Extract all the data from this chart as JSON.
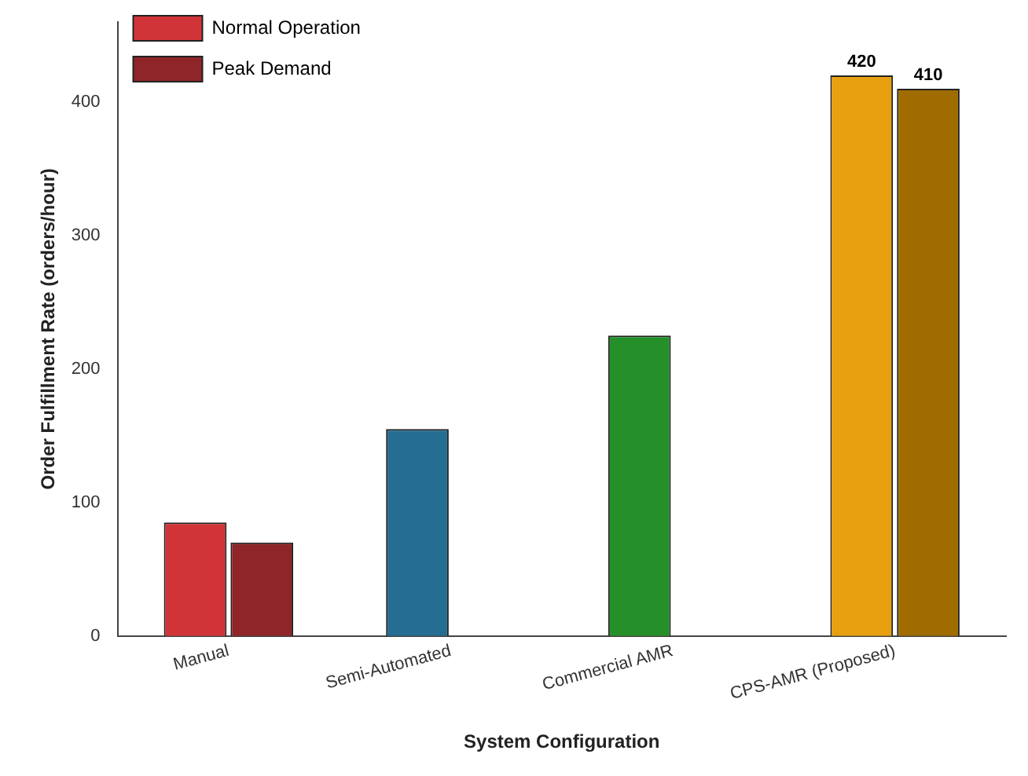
{
  "chart_data": {
    "type": "bar",
    "categories": [
      "Manual",
      "Semi-Automated",
      "Commercial AMR",
      "CPS-AMR (Proposed)"
    ],
    "series": [
      {
        "name": "Normal Operation",
        "color": "#d13438",
        "colors": [
          "#d13438",
          "#256d92",
          "#25902a",
          "#e8a010"
        ],
        "values": [
          85,
          155,
          225,
          420
        ],
        "value_labels": [
          null,
          null,
          null,
          "420"
        ]
      },
      {
        "name": "Peak Demand",
        "color": "#8f2528",
        "colors": [
          "#8f2528",
          "#8f2528",
          "#8f2528",
          "#a06c00"
        ],
        "values": [
          70,
          null,
          null,
          410
        ],
        "value_labels": [
          null,
          null,
          null,
          "410"
        ]
      }
    ],
    "xlabel": "System Configuration",
    "ylabel": "Order Fulfillment Rate (orders/hour)",
    "ylim": [
      0,
      460
    ],
    "yticks": [
      0,
      100,
      200,
      300,
      400
    ],
    "grid": false,
    "legend": "top left"
  }
}
